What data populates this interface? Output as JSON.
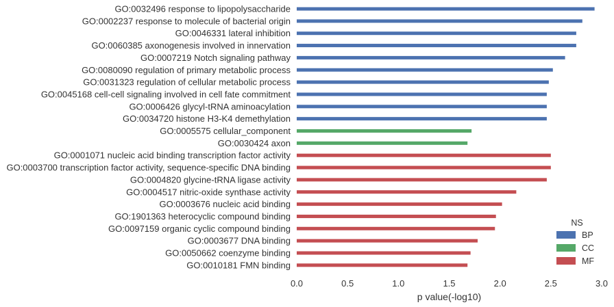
{
  "chart_data": {
    "type": "bar",
    "orientation": "horizontal",
    "title": "",
    "xlabel": "p value(-log10)",
    "ylabel": "",
    "xlim": [
      0,
      3.0
    ],
    "xticks": [
      "0.0",
      "0.5",
      "1.0",
      "1.5",
      "2.0",
      "2.5",
      "3.0"
    ],
    "grid": false,
    "legend": {
      "title": "NS",
      "placement": "bottom-right",
      "entries": [
        {
          "name": "BP",
          "color": "#4c72b0"
        },
        {
          "name": "CC",
          "color": "#55a868"
        },
        {
          "name": "MF",
          "color": "#c44e52"
        }
      ]
    },
    "bars": [
      {
        "label": "GO:0032496 response to lipopolysaccharide",
        "value": 2.93,
        "group": "BP"
      },
      {
        "label": "GO:0002237 response to molecule of bacterial origin",
        "value": 2.81,
        "group": "BP"
      },
      {
        "label": "GO:0046331 lateral inhibition",
        "value": 2.75,
        "group": "BP"
      },
      {
        "label": "GO:0060385 axonogenesis involved in innervation",
        "value": 2.75,
        "group": "BP"
      },
      {
        "label": "GO:0007219 Notch signaling pathway",
        "value": 2.64,
        "group": "BP"
      },
      {
        "label": "GO:0080090 regulation of primary metabolic process",
        "value": 2.52,
        "group": "BP"
      },
      {
        "label": "GO:0031323 regulation of cellular metabolic process",
        "value": 2.48,
        "group": "BP"
      },
      {
        "label": "GO:0045168 cell-cell signaling involved in cell fate commitment",
        "value": 2.46,
        "group": "BP"
      },
      {
        "label": "GO:0006426 glycyl-tRNA aminoacylation",
        "value": 2.46,
        "group": "BP"
      },
      {
        "label": "GO:0034720 histone H3-K4 demethylation",
        "value": 2.46,
        "group": "BP"
      },
      {
        "label": "GO:0005575 cellular_component",
        "value": 1.72,
        "group": "CC"
      },
      {
        "label": "GO:0030424 axon",
        "value": 1.68,
        "group": "CC"
      },
      {
        "label": "GO:0001071 nucleic acid binding transcription factor activity",
        "value": 2.5,
        "group": "MF"
      },
      {
        "label": "GO:0003700 transcription factor activity, sequence-specific DNA binding",
        "value": 2.5,
        "group": "MF"
      },
      {
        "label": "GO:0004820 glycine-tRNA ligase activity",
        "value": 2.46,
        "group": "MF"
      },
      {
        "label": "GO:0004517 nitric-oxide synthase activity",
        "value": 2.16,
        "group": "MF"
      },
      {
        "label": "GO:0003676 nucleic acid binding",
        "value": 2.02,
        "group": "MF"
      },
      {
        "label": "GO:1901363 heterocyclic compound binding",
        "value": 1.96,
        "group": "MF"
      },
      {
        "label": "GO:0097159 organic cyclic compound binding",
        "value": 1.95,
        "group": "MF"
      },
      {
        "label": "GO:0003677 DNA binding",
        "value": 1.78,
        "group": "MF"
      },
      {
        "label": "GO:0050662 coenzyme binding",
        "value": 1.71,
        "group": "MF"
      },
      {
        "label": "GO:0010181 FMN binding",
        "value": 1.68,
        "group": "MF"
      }
    ]
  }
}
